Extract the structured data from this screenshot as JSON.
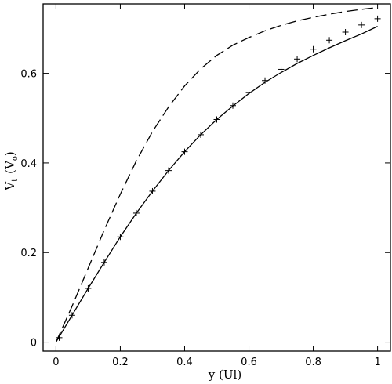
{
  "chart_data": {
    "type": "line",
    "xlabel": "y (Ul)",
    "ylabel_main": "V",
    "ylabel_sub": "t",
    "ylabel_paren_main": "V",
    "ylabel_paren_sub": "o",
    "xlim": [
      -0.04,
      1.04
    ],
    "ylim": [
      -0.02,
      0.755
    ],
    "x_ticks": [
      0,
      0.2,
      0.4,
      0.6,
      0.8,
      1
    ],
    "x_tick_labels": [
      "0",
      "0.2",
      "0.4",
      "0.6",
      "0.8",
      "1"
    ],
    "y_ticks": [
      0,
      0.2,
      0.4,
      0.6
    ],
    "y_tick_labels": [
      "0",
      "0.2",
      "0.4",
      "0.6"
    ],
    "grid": false,
    "series": [
      {
        "style": "dashed",
        "color": "#000000",
        "x": [
          0.0,
          0.05,
          0.1,
          0.15,
          0.2,
          0.25,
          0.3,
          0.35,
          0.4,
          0.45,
          0.5,
          0.55,
          0.6,
          0.65,
          0.7,
          0.75,
          0.8,
          0.85,
          0.9,
          0.95,
          1.0
        ],
        "y": [
          0.0,
          0.08,
          0.165,
          0.25,
          0.33,
          0.405,
          0.47,
          0.525,
          0.572,
          0.61,
          0.64,
          0.663,
          0.68,
          0.695,
          0.707,
          0.717,
          0.725,
          0.732,
          0.738,
          0.743,
          0.747
        ]
      },
      {
        "style": "solid",
        "color": "#000000",
        "x": [
          0.0,
          0.05,
          0.1,
          0.15,
          0.2,
          0.25,
          0.3,
          0.35,
          0.4,
          0.45,
          0.5,
          0.55,
          0.6,
          0.65,
          0.7,
          0.75,
          0.8,
          0.85,
          0.9,
          0.95,
          1.0
        ],
        "y": [
          0.0,
          0.06,
          0.12,
          0.178,
          0.235,
          0.288,
          0.337,
          0.383,
          0.425,
          0.463,
          0.497,
          0.527,
          0.555,
          0.58,
          0.602,
          0.622,
          0.64,
          0.657,
          0.673,
          0.688,
          0.705
        ]
      },
      {
        "style": "markers",
        "marker": "+",
        "color": "#000000",
        "x": [
          0.01,
          0.05,
          0.1,
          0.15,
          0.2,
          0.25,
          0.3,
          0.35,
          0.4,
          0.45,
          0.5,
          0.55,
          0.6,
          0.65,
          0.7,
          0.75,
          0.8,
          0.85,
          0.9,
          0.95,
          1.0
        ],
        "y": [
          0.01,
          0.06,
          0.12,
          0.178,
          0.235,
          0.288,
          0.337,
          0.383,
          0.425,
          0.463,
          0.497,
          0.528,
          0.557,
          0.584,
          0.609,
          0.632,
          0.654,
          0.674,
          0.692,
          0.708,
          0.722
        ]
      }
    ]
  }
}
